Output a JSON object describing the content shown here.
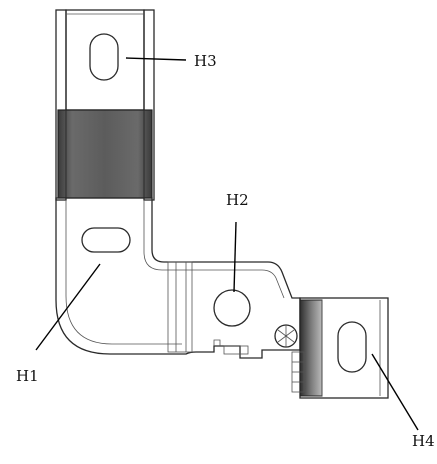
{
  "labels": {
    "h1": "H1",
    "h2": "H2",
    "h3": "H3",
    "h4": "H4"
  },
  "colors": {
    "background": "#ffffff",
    "part_face": "#f3f3f3",
    "part_shade": "#d9d9d9",
    "band_dark": "#5a5a5a",
    "outline": "#2a2a2a",
    "leader_line": "#000000"
  }
}
